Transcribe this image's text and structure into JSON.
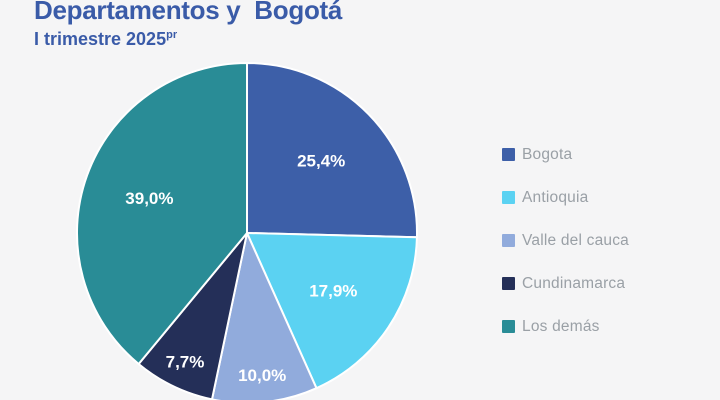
{
  "header": {
    "title": "Departamentos y  Bogotá",
    "subtitle": "I trimestre 2025",
    "subtitle_superscript": "pr"
  },
  "colors": {
    "background": "#F5F5F6",
    "title_text": "#3A5BA8",
    "legend_text": "#9AA0A6",
    "slice_label_text": "#FFFFFF",
    "slice_separator": "#FFFFFF"
  },
  "chart_data": {
    "type": "pie",
    "title": "Departamentos y  Bogotá",
    "subtitle": "I trimestre 2025pr",
    "unit": "percent",
    "direction": "clockwise",
    "start_angle_deg": 0,
    "legend_position": "right",
    "series": [
      {
        "name": "Bogota",
        "value": 25.4,
        "label": "25,4%",
        "color": "#3D5FA8"
      },
      {
        "name": "Antioquia",
        "value": 17.9,
        "label": "17,9%",
        "color": "#5BD2F2"
      },
      {
        "name": "Valle del cauca",
        "value": 10.0,
        "label": "10,0%",
        "color": "#91ABDC"
      },
      {
        "name": "Cundinamarca",
        "value": 7.7,
        "label": "7,7%",
        "color": "#242F58"
      },
      {
        "name": "Los demás",
        "value": 39.0,
        "label": "39,0%",
        "color": "#298C96"
      }
    ]
  }
}
